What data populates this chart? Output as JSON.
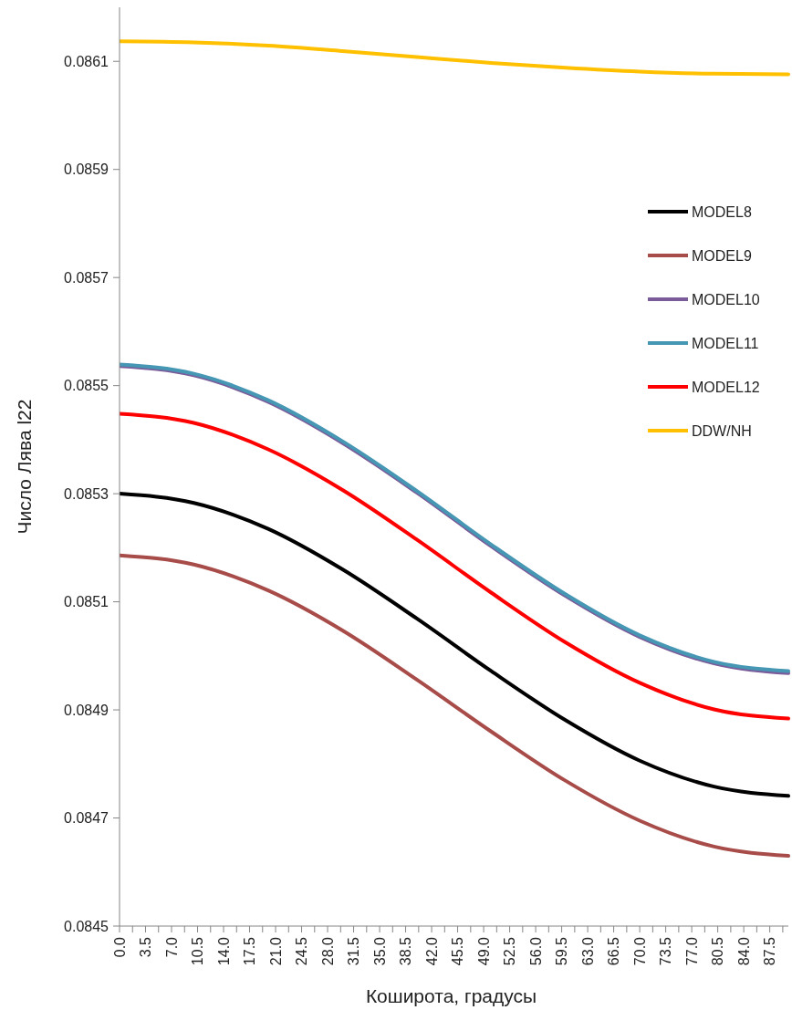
{
  "chart_data": {
    "type": "line",
    "xlabel": "Коширота, градусы",
    "ylabel": "Число Лява l22",
    "x": [
      0,
      10,
      20,
      30,
      40,
      50,
      60,
      70,
      80,
      90
    ],
    "series": [
      {
        "name": "MODEL8",
        "color": "#000000",
        "values": [
          0.0853,
          0.085283,
          0.085235,
          0.08516,
          0.085069,
          0.084972,
          0.084881,
          0.084806,
          0.084758,
          0.084741
        ]
      },
      {
        "name": "MODEL9",
        "color": "#a84c4a",
        "values": [
          0.085186,
          0.085169,
          0.085121,
          0.085047,
          0.084956,
          0.08486,
          0.084769,
          0.084695,
          0.084647,
          0.08463
        ]
      },
      {
        "name": "MODEL10",
        "color": "#7a5c9a",
        "values": [
          0.085536,
          0.085519,
          0.08547,
          0.085394,
          0.085302,
          0.085203,
          0.085111,
          0.085035,
          0.084986,
          0.084968
        ]
      },
      {
        "name": "MODEL11",
        "color": "#4697b4",
        "values": [
          0.085539,
          0.085522,
          0.085473,
          0.085397,
          0.085305,
          0.085206,
          0.085114,
          0.085038,
          0.084989,
          0.084972
        ]
      },
      {
        "name": "MODEL12",
        "color": "#ff0000",
        "values": [
          0.085448,
          0.085431,
          0.085382,
          0.085307,
          0.085215,
          0.085117,
          0.085025,
          0.08495,
          0.084901,
          0.084884
        ]
      },
      {
        "name": "DDW/NH",
        "color": "#ffc000",
        "values": [
          0.086137,
          0.086135,
          0.086129,
          0.086119,
          0.086108,
          0.086097,
          0.086088,
          0.086081,
          0.086077,
          0.086076
        ]
      }
    ],
    "xlim": [
      0,
      90
    ],
    "ylim": [
      0.0845,
      0.0862
    ],
    "xticks": [
      {
        "value": 0,
        "label": "0.0"
      },
      {
        "value": 1.75,
        "label": null
      },
      {
        "value": 3.5,
        "label": "3.5"
      },
      {
        "value": 5.25,
        "label": null
      },
      {
        "value": 7,
        "label": "7.0"
      },
      {
        "value": 8.75,
        "label": null
      },
      {
        "value": 10.5,
        "label": "10.5"
      },
      {
        "value": 12.25,
        "label": null
      },
      {
        "value": 14,
        "label": "14.0"
      },
      {
        "value": 15.75,
        "label": null
      },
      {
        "value": 17.5,
        "label": "17.5"
      },
      {
        "value": 19.25,
        "label": null
      },
      {
        "value": 21,
        "label": "21.0"
      },
      {
        "value": 22.75,
        "label": null
      },
      {
        "value": 24.5,
        "label": "24.5"
      },
      {
        "value": 26.25,
        "label": null
      },
      {
        "value": 28,
        "label": "28.0"
      },
      {
        "value": 29.75,
        "label": null
      },
      {
        "value": 31.5,
        "label": "31.5"
      },
      {
        "value": 33.25,
        "label": null
      },
      {
        "value": 35,
        "label": "35.0"
      },
      {
        "value": 36.75,
        "label": null
      },
      {
        "value": 38.5,
        "label": "38.5"
      },
      {
        "value": 40.25,
        "label": null
      },
      {
        "value": 42,
        "label": "42.0"
      },
      {
        "value": 43.75,
        "label": null
      },
      {
        "value": 45.5,
        "label": "45.5"
      },
      {
        "value": 47.25,
        "label": null
      },
      {
        "value": 49,
        "label": "49.0"
      },
      {
        "value": 50.75,
        "label": null
      },
      {
        "value": 52.5,
        "label": "52.5"
      },
      {
        "value": 54.25,
        "label": null
      },
      {
        "value": 56,
        "label": "56.0"
      },
      {
        "value": 57.75,
        "label": null
      },
      {
        "value": 59.5,
        "label": "59.5"
      },
      {
        "value": 61.25,
        "label": null
      },
      {
        "value": 63,
        "label": "63.0"
      },
      {
        "value": 64.75,
        "label": null
      },
      {
        "value": 66.5,
        "label": "66.5"
      },
      {
        "value": 68.25,
        "label": null
      },
      {
        "value": 70,
        "label": "70.0"
      },
      {
        "value": 71.75,
        "label": null
      },
      {
        "value": 73.5,
        "label": "73.5"
      },
      {
        "value": 75.25,
        "label": null
      },
      {
        "value": 77,
        "label": "77.0"
      },
      {
        "value": 78.75,
        "label": null
      },
      {
        "value": 80.5,
        "label": "80.5"
      },
      {
        "value": 82.25,
        "label": null
      },
      {
        "value": 84,
        "label": "84.0"
      },
      {
        "value": 85.75,
        "label": null
      },
      {
        "value": 87.5,
        "label": "87.5"
      },
      {
        "value": 89.25,
        "label": null
      }
    ],
    "yticks": [
      0.0845,
      0.0847,
      0.0849,
      0.0851,
      0.0853,
      0.0855,
      0.0857,
      0.0859,
      0.0861
    ],
    "grid": false,
    "legend": "right",
    "line_style": "solid"
  }
}
